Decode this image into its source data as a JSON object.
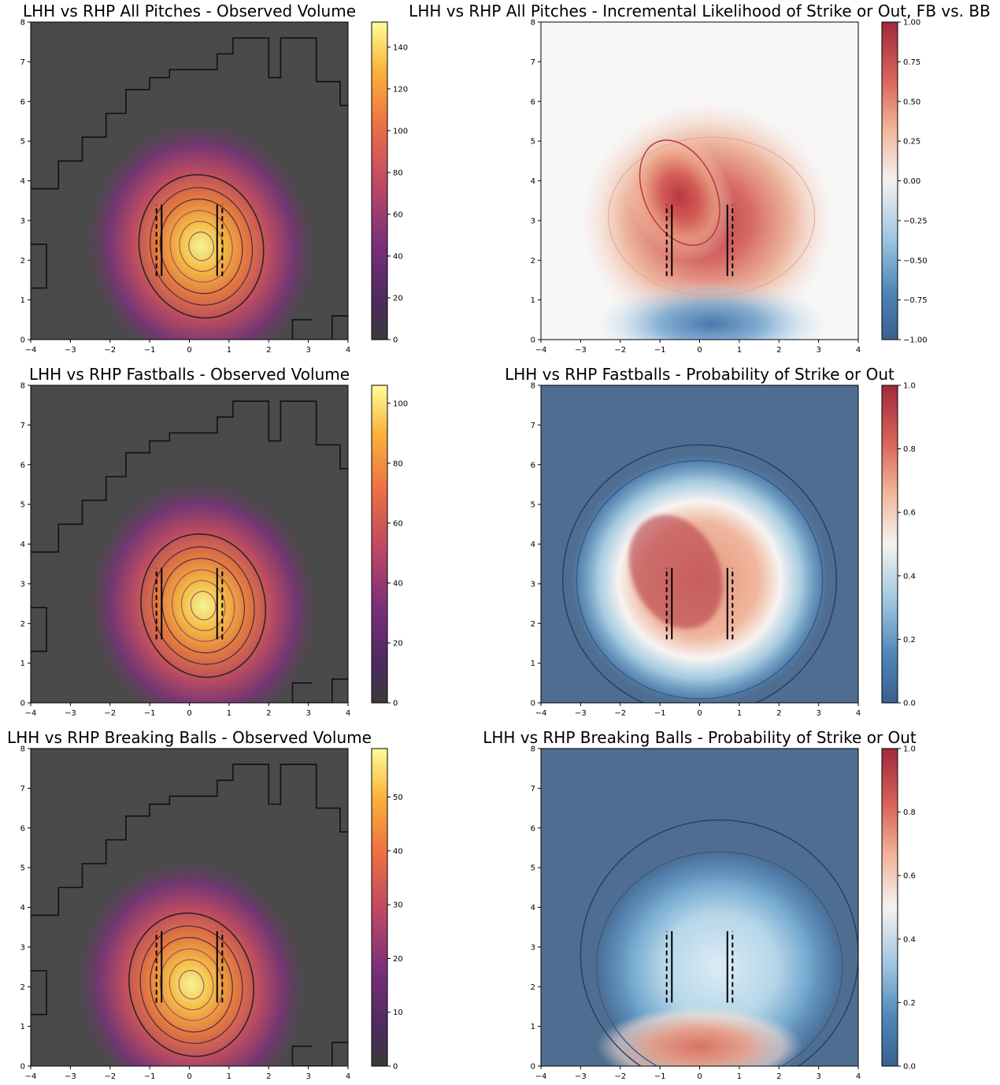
{
  "figure": {
    "background": "#ffffff",
    "background_field_volume": "#4a4a4a",
    "background_field_probability": "#4f6d90",
    "background_field_incremental": "#f7f7f7"
  },
  "chart_data": [
    {
      "type": "heatmap",
      "title": "LHH vs RHP  All Pitches - Observed Volume",
      "xlabel": "",
      "ylabel": "",
      "xlim": [
        -4,
        4
      ],
      "ylim": [
        0,
        8
      ],
      "x_ticks": [
        "−4",
        "−3",
        "−2",
        "−1",
        "0",
        "1",
        "2",
        "3",
        "4"
      ],
      "y_ticks": [
        "0",
        "1",
        "2",
        "3",
        "4",
        "5",
        "6",
        "7",
        "8"
      ],
      "colormap": "inferno",
      "colorbar": {
        "min": 0,
        "max": 152,
        "ticks": [
          0,
          20,
          40,
          60,
          80,
          100,
          120,
          140
        ]
      },
      "density_peak": {
        "x": 0.3,
        "y": 2.35,
        "value": 152
      },
      "strike_zone_guides": {
        "x_left": [
          -0.83,
          -0.7
        ],
        "x_right": [
          0.7,
          0.83
        ],
        "y_range": [
          1.6,
          3.4
        ]
      },
      "grid": false
    },
    {
      "type": "heatmap",
      "title": "LHH vs RHP  All Pitches - Incremental Likelihood of Strike or Out, FB vs. BB",
      "xlabel": "",
      "ylabel": "",
      "xlim": [
        -4,
        4
      ],
      "ylim": [
        0,
        8
      ],
      "x_ticks": [
        "−4",
        "−3",
        "−2",
        "−1",
        "0",
        "1",
        "2",
        "3",
        "4"
      ],
      "y_ticks": [
        "0",
        "1",
        "2",
        "3",
        "4",
        "5",
        "6",
        "7",
        "8"
      ],
      "colormap": "RdBu_r",
      "colorbar": {
        "min": -1,
        "max": 1,
        "ticks": [
          "−1.00",
          "−0.75",
          "−0.50",
          "−0.25",
          "0.00",
          "0.25",
          "0.50",
          "0.75",
          "1.00"
        ]
      },
      "positive_region_center": {
        "x": -0.5,
        "y": 3.0,
        "value": 0.6
      },
      "negative_region_center": {
        "x": -1.0,
        "y": 0.4,
        "value": -0.5
      },
      "strike_zone_guides": {
        "x_left": [
          -0.83,
          -0.7
        ],
        "x_right": [
          0.7,
          0.83
        ],
        "y_range": [
          1.6,
          3.4
        ]
      },
      "grid": false
    },
    {
      "type": "heatmap",
      "title": "LHH vs RHP Fastballs - Observed Volume",
      "xlabel": "",
      "ylabel": "",
      "xlim": [
        -4,
        4
      ],
      "ylim": [
        0,
        8
      ],
      "x_ticks": [
        "−4",
        "−3",
        "−2",
        "−1",
        "0",
        "1",
        "2",
        "3",
        "4"
      ],
      "y_ticks": [
        "0",
        "1",
        "2",
        "3",
        "4",
        "5",
        "6",
        "7",
        "8"
      ],
      "colormap": "inferno",
      "colorbar": {
        "min": 0,
        "max": 106,
        "ticks": [
          0,
          20,
          40,
          60,
          80,
          100
        ]
      },
      "density_peak": {
        "x": 0.35,
        "y": 2.45,
        "value": 106
      },
      "strike_zone_guides": {
        "x_left": [
          -0.83,
          -0.7
        ],
        "x_right": [
          0.7,
          0.83
        ],
        "y_range": [
          1.6,
          3.4
        ]
      },
      "grid": false
    },
    {
      "type": "heatmap",
      "title": "LHH vs RHP Fastballs - Probability of Strike or Out",
      "xlabel": "",
      "ylabel": "",
      "xlim": [
        -4,
        4
      ],
      "ylim": [
        0,
        8
      ],
      "x_ticks": [
        "−4",
        "−3",
        "−2",
        "−1",
        "0",
        "1",
        "2",
        "3",
        "4"
      ],
      "y_ticks": [
        "0",
        "1",
        "2",
        "3",
        "4",
        "5",
        "6",
        "7",
        "8"
      ],
      "colormap": "RdBu_r",
      "colorbar": {
        "min": 0,
        "max": 1,
        "ticks": [
          "0.0",
          "0.2",
          "0.4",
          "0.6",
          "0.8",
          "1.0"
        ]
      },
      "high_region_center": {
        "x": -0.6,
        "y": 3.3,
        "value": 0.85
      },
      "strike_zone_guides": {
        "x_left": [
          -0.83,
          -0.7
        ],
        "x_right": [
          0.7,
          0.83
        ],
        "y_range": [
          1.6,
          3.4
        ]
      },
      "grid": false
    },
    {
      "type": "heatmap",
      "title": "LHH vs RHP Breaking Balls - Observed Volume",
      "xlabel": "",
      "ylabel": "",
      "xlim": [
        -4,
        4
      ],
      "ylim": [
        0,
        8
      ],
      "x_ticks": [
        "−4",
        "−3",
        "−2",
        "−1",
        "0",
        "1",
        "2",
        "3",
        "4"
      ],
      "y_ticks": [
        "0",
        "1",
        "2",
        "3",
        "4",
        "5",
        "6",
        "7",
        "8"
      ],
      "colormap": "inferno",
      "colorbar": {
        "min": 0,
        "max": 59,
        "ticks": [
          0,
          10,
          20,
          30,
          40,
          50
        ]
      },
      "density_peak": {
        "x": 0.05,
        "y": 2.05,
        "value": 59
      },
      "strike_zone_guides": {
        "x_left": [
          -0.83,
          -0.7
        ],
        "x_right": [
          0.7,
          0.83
        ],
        "y_range": [
          1.6,
          3.4
        ]
      },
      "grid": false
    },
    {
      "type": "heatmap",
      "title": "LHH vs RHP Breaking Balls - Probability of Strike or Out",
      "xlabel": "",
      "ylabel": "",
      "xlim": [
        -4,
        4
      ],
      "ylim": [
        0,
        8
      ],
      "x_ticks": [
        "−4",
        "−3",
        "−2",
        "−1",
        "0",
        "1",
        "2",
        "3",
        "4"
      ],
      "y_ticks": [
        "0",
        "1",
        "2",
        "3",
        "4",
        "5",
        "6",
        "7",
        "8"
      ],
      "colormap": "RdBu_r",
      "colorbar": {
        "min": 0,
        "max": 1,
        "ticks": [
          "0.0",
          "0.2",
          "0.4",
          "0.6",
          "0.8",
          "1.0"
        ]
      },
      "high_region_center": {
        "x": 0.0,
        "y": 0.5,
        "value": 0.7
      },
      "mid_region_center": {
        "x": 0.5,
        "y": 2.5,
        "value": 0.45
      },
      "strike_zone_guides": {
        "x_left": [
          -0.83,
          -0.7
        ],
        "x_right": [
          0.7,
          0.83
        ],
        "y_range": [
          1.6,
          3.4
        ]
      },
      "grid": false
    }
  ]
}
